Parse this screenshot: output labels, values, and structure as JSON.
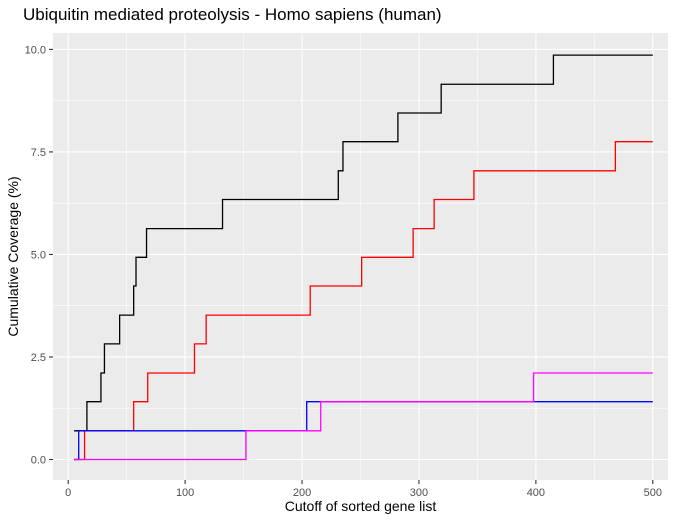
{
  "chart_data": {
    "type": "line",
    "step": true,
    "title": "Ubiquitin mediated proteolysis - Homo sapiens (human)",
    "xlabel": "Cutoff of sorted gene list",
    "ylabel": "Cumulative Coverage (%)",
    "xlim": [
      -13,
      513
    ],
    "ylim": [
      -0.5,
      10.4
    ],
    "xticks": [
      0,
      100,
      200,
      300,
      400,
      500
    ],
    "xtick_labels": [
      "0",
      "100",
      "200",
      "300",
      "400",
      "500"
    ],
    "yticks": [
      0,
      2.5,
      5,
      7.5,
      10
    ],
    "ytick_labels": [
      "0.0",
      "2.5",
      "5.0",
      "7.5",
      "10.0"
    ],
    "grid": true,
    "legend": "none",
    "series": [
      {
        "color": "#000000",
        "points": [
          [
            5,
            0.7
          ],
          [
            16,
            0.7
          ],
          [
            16,
            1.41
          ],
          [
            28,
            1.41
          ],
          [
            28,
            2.11
          ],
          [
            31,
            2.11
          ],
          [
            31,
            2.82
          ],
          [
            44,
            2.82
          ],
          [
            44,
            3.52
          ],
          [
            56,
            3.52
          ],
          [
            56,
            4.23
          ],
          [
            58,
            4.23
          ],
          [
            58,
            4.93
          ],
          [
            67,
            4.93
          ],
          [
            67,
            5.63
          ],
          [
            132,
            5.63
          ],
          [
            132,
            6.34
          ],
          [
            231,
            6.34
          ],
          [
            231,
            7.04
          ],
          [
            235,
            7.04
          ],
          [
            235,
            7.75
          ],
          [
            282,
            7.75
          ],
          [
            282,
            8.45
          ],
          [
            319,
            8.45
          ],
          [
            319,
            9.15
          ],
          [
            415,
            9.15
          ],
          [
            415,
            9.86
          ],
          [
            500,
            9.86
          ]
        ]
      },
      {
        "color": "#ff0000",
        "points": [
          [
            5,
            0.0
          ],
          [
            14,
            0.0
          ],
          [
            14,
            0.7
          ],
          [
            56,
            0.7
          ],
          [
            56,
            1.41
          ],
          [
            68,
            1.41
          ],
          [
            68,
            2.11
          ],
          [
            108,
            2.11
          ],
          [
            108,
            2.82
          ],
          [
            118,
            2.82
          ],
          [
            118,
            3.52
          ],
          [
            207,
            3.52
          ],
          [
            207,
            4.23
          ],
          [
            251,
            4.23
          ],
          [
            251,
            4.93
          ],
          [
            295,
            4.93
          ],
          [
            295,
            5.63
          ],
          [
            313,
            5.63
          ],
          [
            313,
            6.34
          ],
          [
            347,
            6.34
          ],
          [
            347,
            7.04
          ],
          [
            468,
            7.04
          ],
          [
            468,
            7.75
          ],
          [
            500,
            7.75
          ]
        ]
      },
      {
        "color": "#0000ff",
        "points": [
          [
            5,
            0.0
          ],
          [
            9,
            0.0
          ],
          [
            9,
            0.7
          ],
          [
            204,
            0.7
          ],
          [
            204,
            1.41
          ],
          [
            500,
            1.41
          ]
        ]
      },
      {
        "color": "#ff00ff",
        "points": [
          [
            5,
            0.0
          ],
          [
            152,
            0.0
          ],
          [
            152,
            0.7
          ],
          [
            216,
            0.7
          ],
          [
            216,
            1.41
          ],
          [
            398,
            1.41
          ],
          [
            398,
            2.11
          ],
          [
            500,
            2.11
          ]
        ]
      }
    ]
  }
}
